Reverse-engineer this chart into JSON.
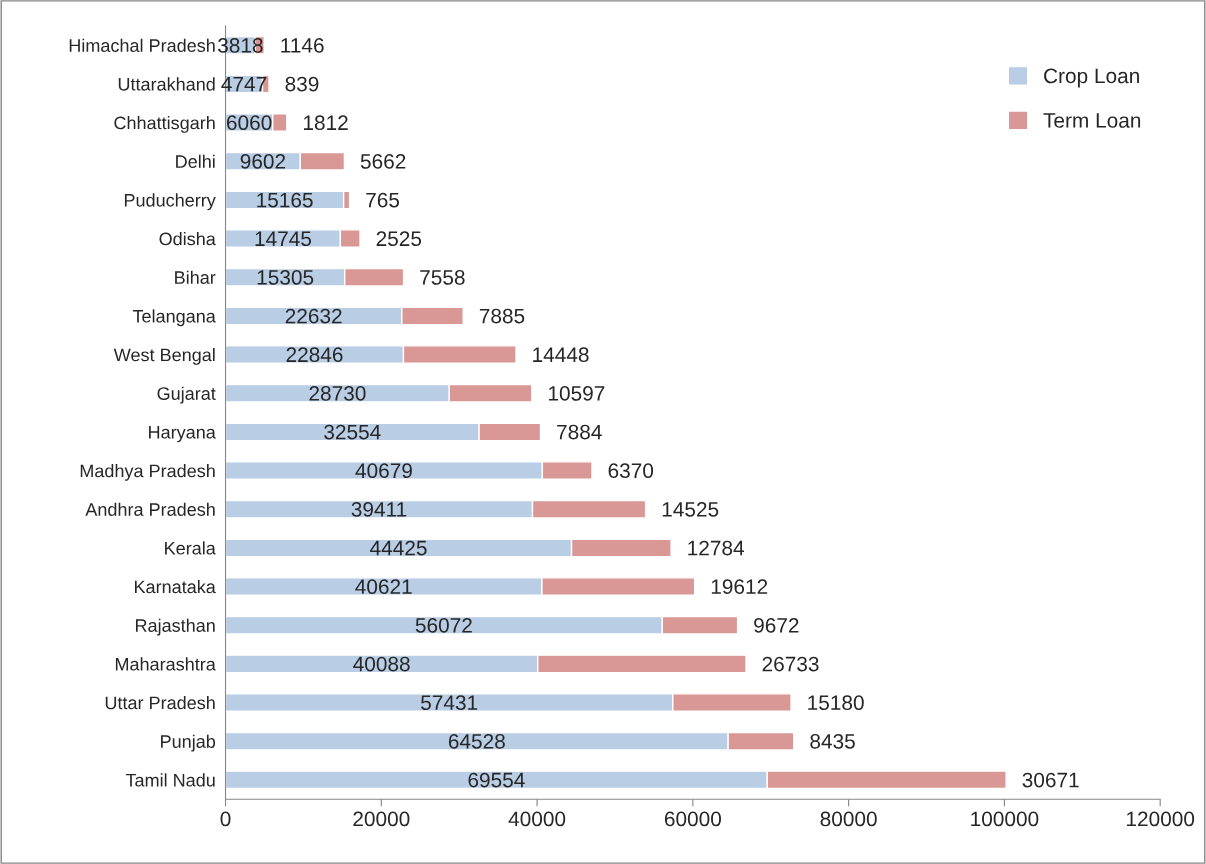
{
  "chart_data": {
    "type": "bar",
    "orientation": "horizontal",
    "stacked": true,
    "data_labels": true,
    "legend": "top right",
    "grid": false,
    "categories": [
      "Himachal Pradesh",
      "Uttarakhand",
      "Chhattisgarh",
      "Delhi",
      "Puducherry",
      "Odisha",
      "Bihar",
      "Telangana",
      "West Bengal",
      "Gujarat",
      "Haryana",
      "Madhya Pradesh",
      "Andhra Pradesh",
      "Kerala",
      "Karnataka",
      "Rajasthan",
      "Maharashtra",
      "Uttar Pradesh",
      "Punjab",
      "Tamil Nadu"
    ],
    "series": [
      {
        "name": "Crop Loan",
        "color": "#b9cde5",
        "values": [
          3818,
          4747,
          6060,
          9602,
          15165,
          14745,
          15305,
          22632,
          22846,
          28730,
          32554,
          40679,
          39411,
          44425,
          40621,
          56072,
          40088,
          57431,
          64528,
          69554
        ]
      },
      {
        "name": "Term Loan",
        "color": "#d99795",
        "values": [
          1146,
          839,
          1812,
          5662,
          765,
          2525,
          7558,
          7885,
          14448,
          10597,
          7884,
          6370,
          14525,
          12784,
          19612,
          9672,
          26733,
          15180,
          8435,
          30671
        ]
      }
    ],
    "xlim": [
      0,
      120000
    ],
    "xticks": [
      0,
      20000,
      40000,
      60000,
      80000,
      100000,
      120000
    ]
  }
}
